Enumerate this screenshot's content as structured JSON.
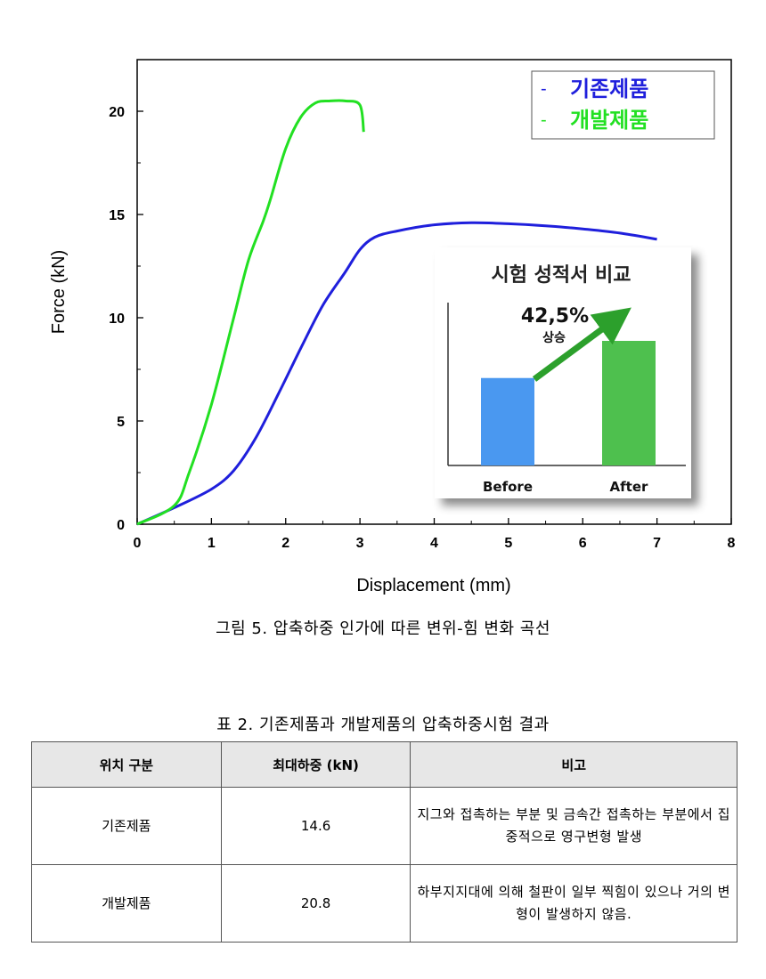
{
  "chart_data": {
    "type": "line",
    "xlabel": "Displacement (mm)",
    "ylabel": "Force (kN)",
    "xlim": [
      0,
      8
    ],
    "ylim": [
      0,
      22.5
    ],
    "x_ticks": [
      0,
      1,
      2,
      3,
      4,
      5,
      6,
      7,
      8
    ],
    "y_ticks": [
      0,
      5,
      10,
      15,
      20
    ],
    "legend_placement": "top-right",
    "grid": false,
    "series": [
      {
        "name": "기존제품",
        "color": "#1f1fdc",
        "points": [
          [
            0,
            0
          ],
          [
            0.5,
            0.8
          ],
          [
            1.0,
            1.7
          ],
          [
            1.3,
            2.6
          ],
          [
            1.6,
            4.2
          ],
          [
            1.9,
            6.3
          ],
          [
            2.2,
            8.5
          ],
          [
            2.5,
            10.6
          ],
          [
            2.8,
            12.2
          ],
          [
            3.0,
            13.3
          ],
          [
            3.2,
            13.9
          ],
          [
            3.5,
            14.2
          ],
          [
            4.0,
            14.5
          ],
          [
            4.5,
            14.6
          ],
          [
            5.0,
            14.55
          ],
          [
            5.5,
            14.45
          ],
          [
            6.0,
            14.3
          ],
          [
            6.5,
            14.1
          ],
          [
            7.0,
            13.8
          ]
        ]
      },
      {
        "name": "개발제품",
        "color": "#22e022",
        "points": [
          [
            0,
            0
          ],
          [
            0.5,
            0.9
          ],
          [
            0.7,
            2.5
          ],
          [
            1.0,
            5.8
          ],
          [
            1.3,
            10.0
          ],
          [
            1.5,
            12.8
          ],
          [
            1.7,
            14.7
          ],
          [
            1.8,
            15.8
          ],
          [
            2.0,
            18.2
          ],
          [
            2.2,
            19.7
          ],
          [
            2.4,
            20.4
          ],
          [
            2.6,
            20.5
          ],
          [
            2.8,
            20.5
          ],
          [
            3.0,
            20.3
          ],
          [
            3.05,
            19.0
          ]
        ]
      }
    ],
    "inset": {
      "title": "시험 성적서 비교",
      "categories": [
        "Before",
        "After"
      ],
      "values": [
        14.6,
        20.8
      ],
      "colors": [
        "#4a98f0",
        "#4ec04e"
      ],
      "annotation_value": "42,5%",
      "annotation_label": "상승",
      "arrow_color": "#2ca02c"
    }
  },
  "figure_caption": "그림 5. 압축하중 인가에 따른 변위-힘 변화 곡선",
  "table_caption": "표 2. 기존제품과 개발제품의 압축하중시험 결과",
  "table": {
    "headers": [
      "위치 구분",
      "최대하중 (kN)",
      "비고"
    ],
    "rows": [
      {
        "position": "기존제품",
        "max_load": "14.6",
        "note": "지그와 접촉하는 부분 및 금속간 접촉하는 부분에서 집중적으로 영구변형 발생"
      },
      {
        "position": "개발제품",
        "max_load": "20.8",
        "note": "하부지지대에 의해 철판이 일부 찍힘이 있으나 거의 변형이 발생하지 않음."
      }
    ]
  }
}
